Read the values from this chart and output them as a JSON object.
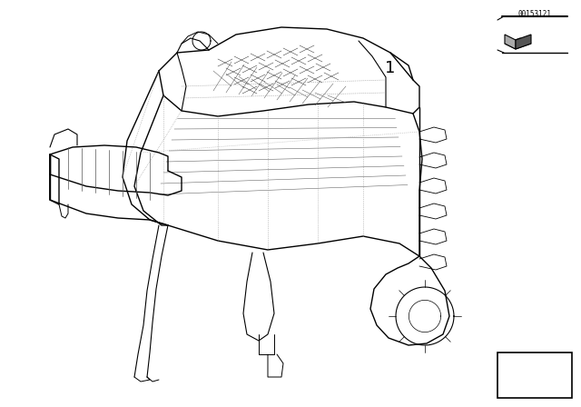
{
  "background_color": "#ffffff",
  "part_number": "00153121",
  "label_1": "1",
  "fig_width": 6.4,
  "fig_height": 4.48,
  "dpi": 100,
  "line_color": "#000000",
  "dot_color": "#888888"
}
